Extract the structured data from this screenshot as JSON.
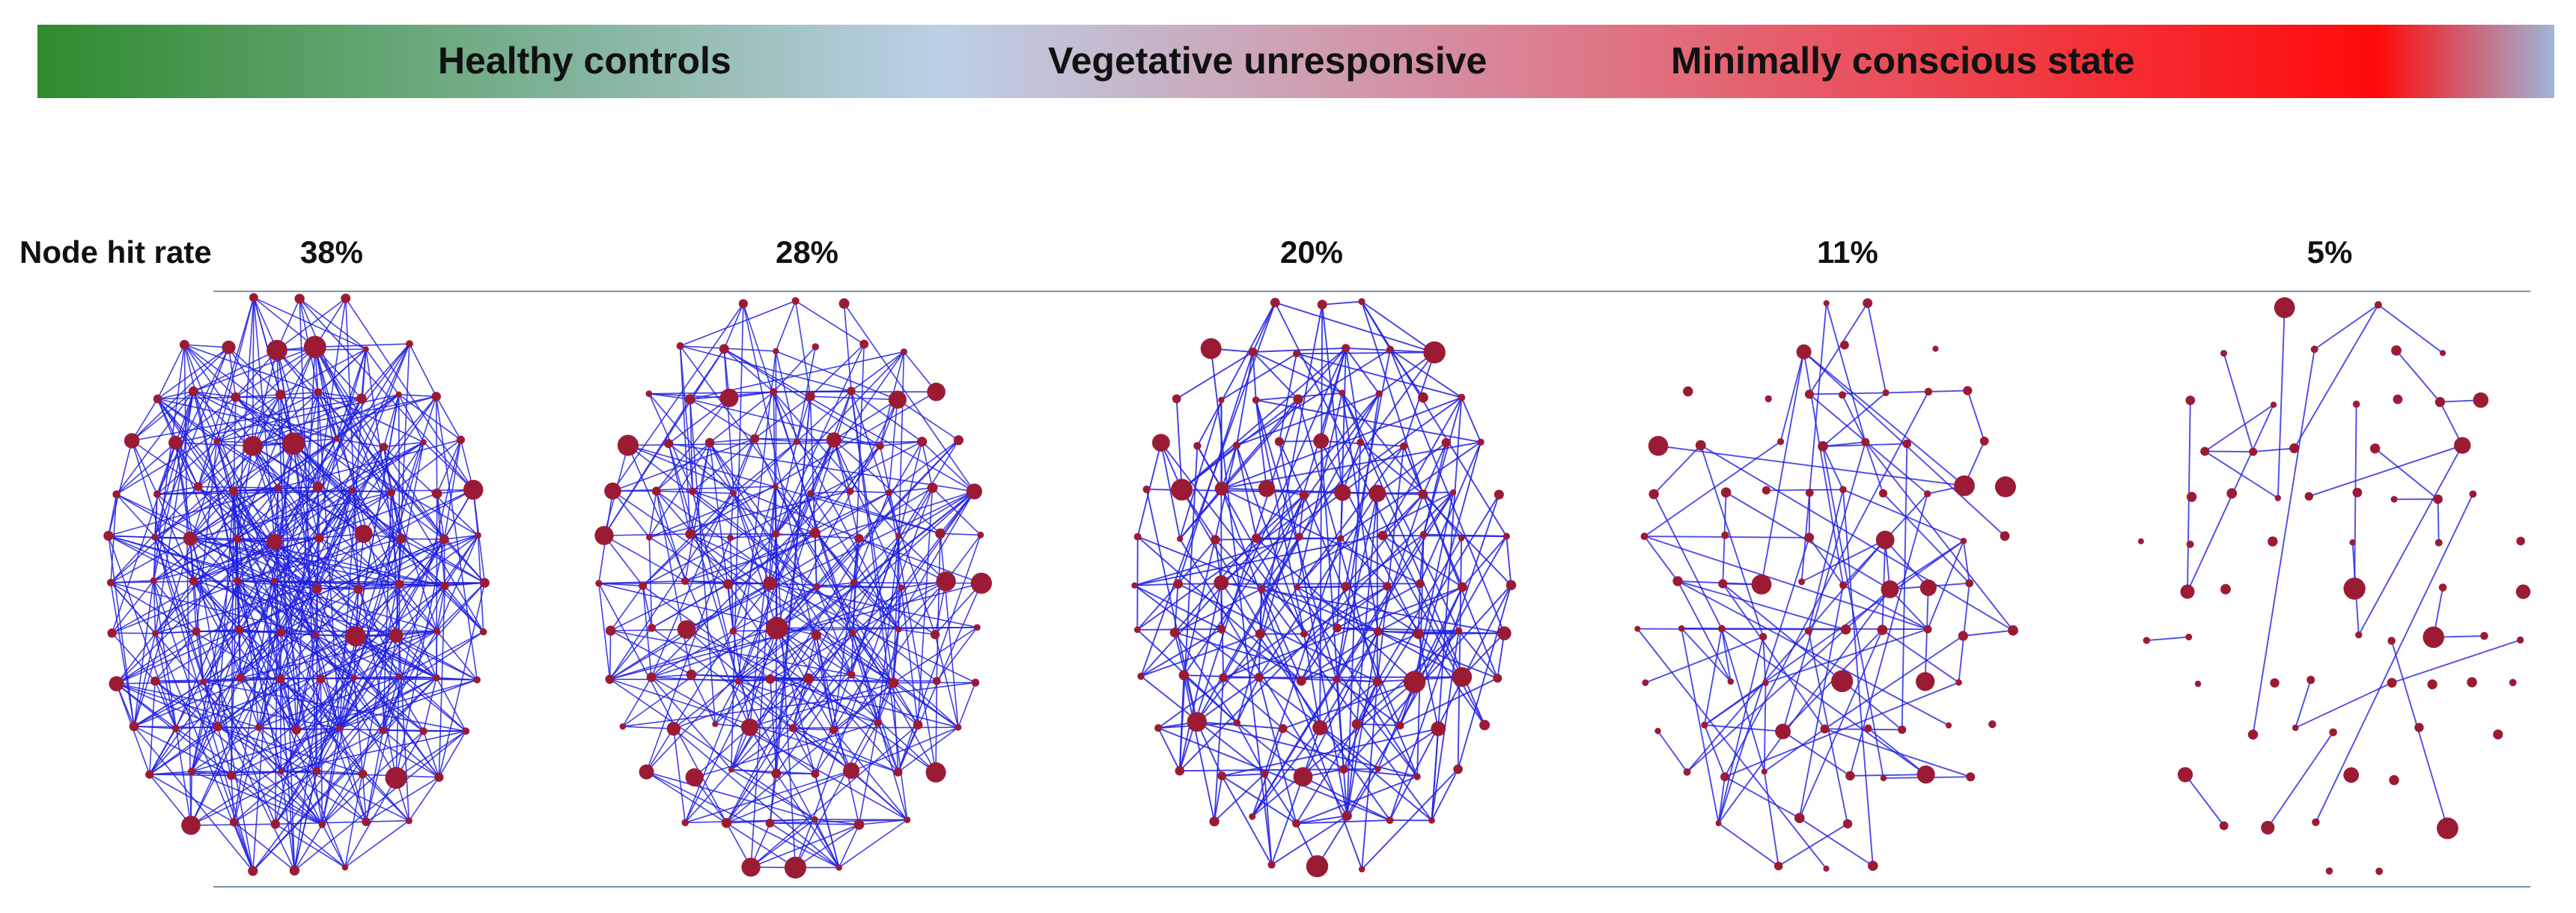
{
  "condition_bar": {
    "labels": [
      "Healthy controls",
      "Vegetative unresponsive",
      "Minimally conscious state"
    ],
    "colors": {
      "healthy": "#2e8b2e",
      "neutral": "#bcd0e6",
      "mid": "#e07080",
      "mcs": "#ff0a0a",
      "end": "#9fb5d8"
    }
  },
  "row_title": "Node hit rate",
  "networks": [
    {
      "hit_rate": "38%",
      "hit_rate_value": 38
    },
    {
      "hit_rate": "28%",
      "hit_rate_value": 28
    },
    {
      "hit_rate": "20%",
      "hit_rate_value": 20
    },
    {
      "hit_rate": "11%",
      "hit_rate_value": 11
    },
    {
      "hit_rate": "5%",
      "hit_rate_value": 5
    }
  ],
  "style": {
    "edge_color": "#2020e0",
    "node_color": "#9b1b35",
    "line_color": "#7f93a8"
  }
}
